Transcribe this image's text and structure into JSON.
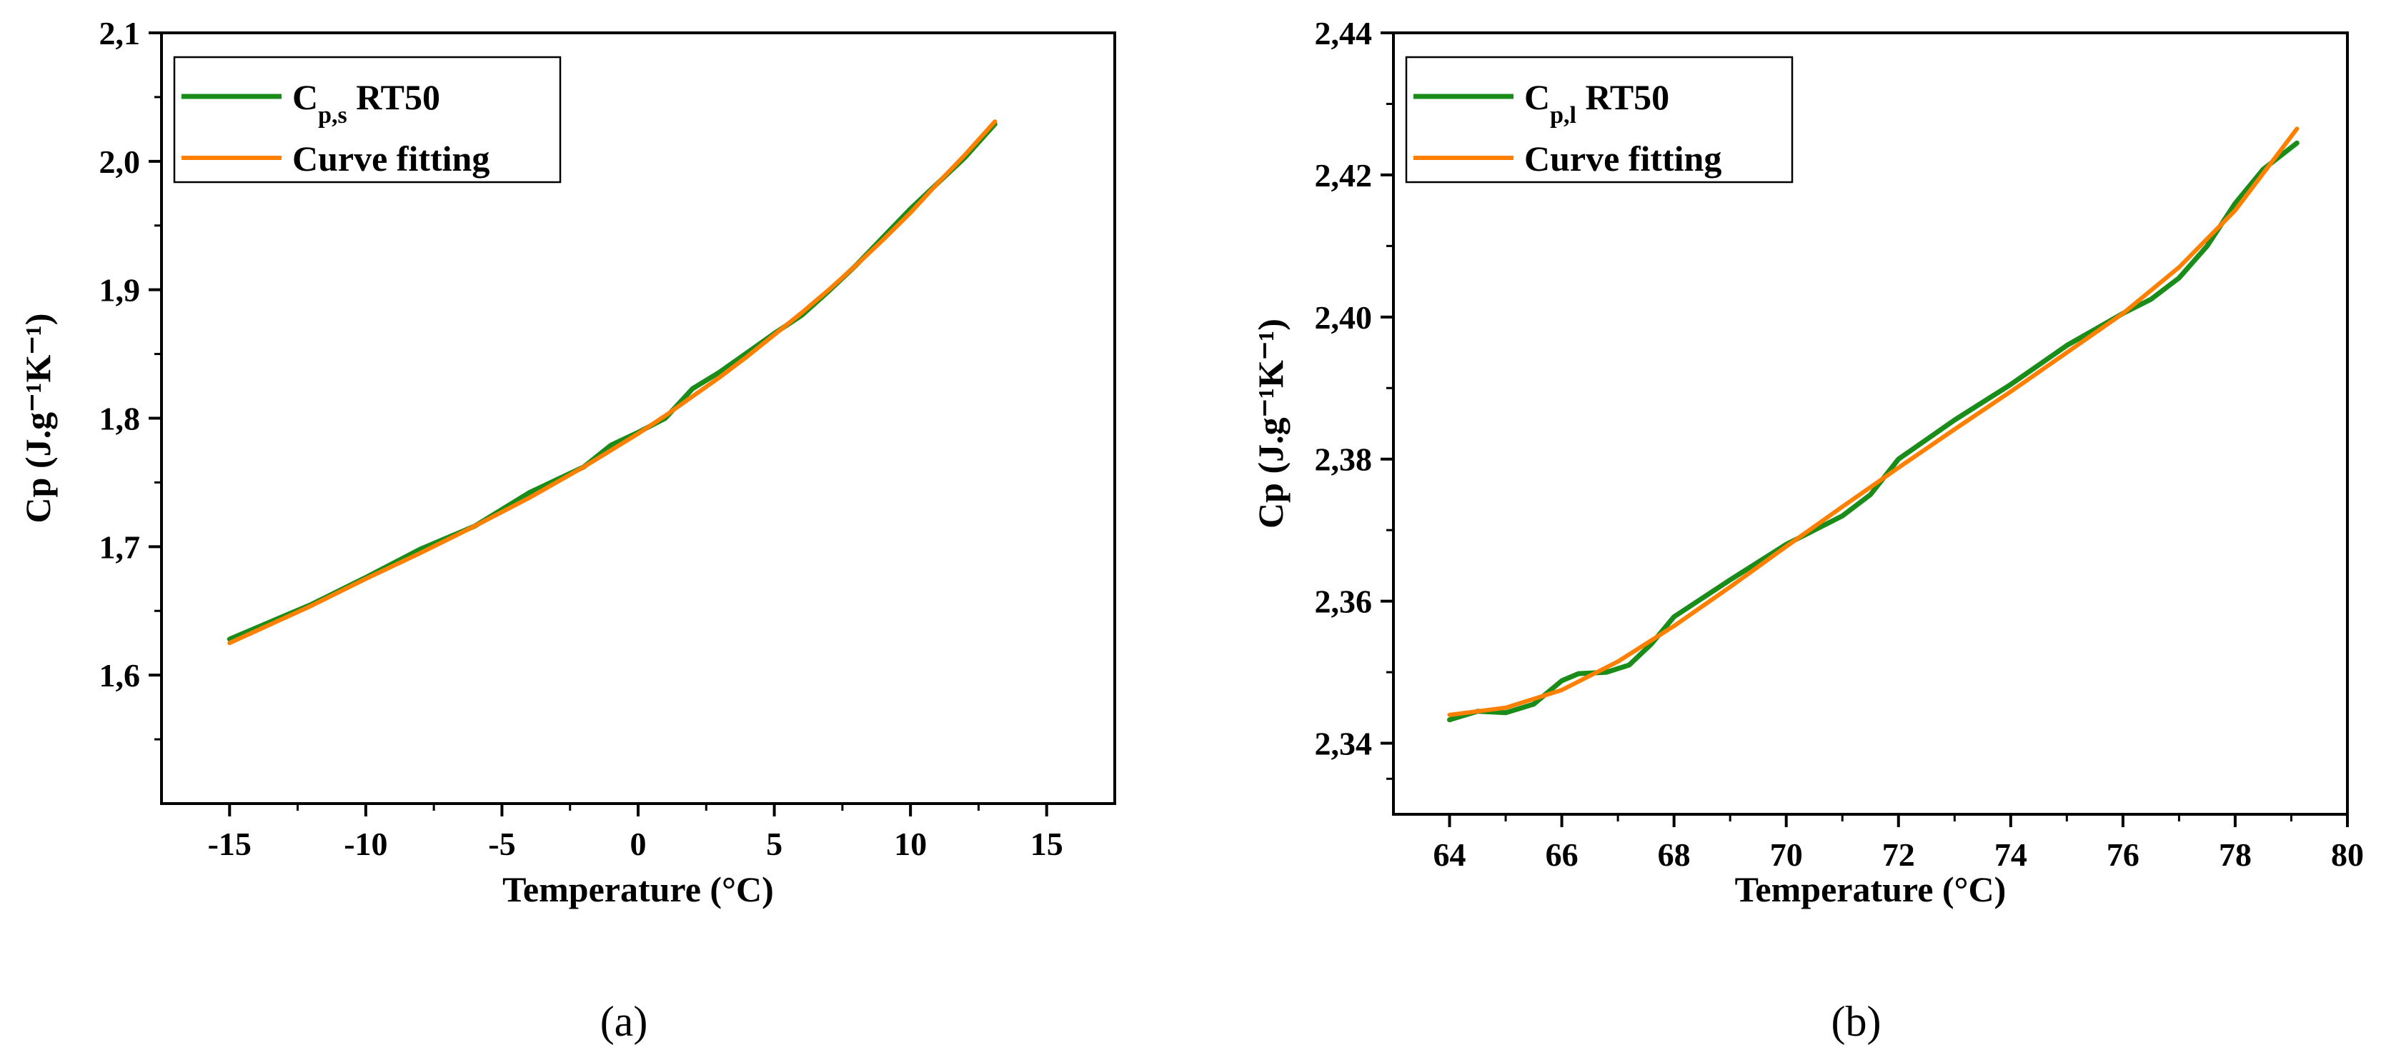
{
  "colors": {
    "data_line": "#1a8c1a",
    "fit_line": "#ff8000",
    "axis": "#000000"
  },
  "chart_data": [
    {
      "type": "line",
      "panel_label": "(a)",
      "xlabel": "Temperature (°C)",
      "ylabel": "Cp (J.g⁻¹K⁻¹)",
      "xlim": [
        -17.5,
        17.5
      ],
      "ylim": [
        1.5,
        2.1
      ],
      "x_ticks": [
        -15,
        -10,
        -5,
        0,
        5,
        10,
        15
      ],
      "x_tick_labels": [
        "-15",
        "-10",
        "-5",
        "0",
        "5",
        "10",
        "15"
      ],
      "y_ticks": [
        1.6,
        1.7,
        1.8,
        1.9,
        2.0,
        2.1
      ],
      "y_tick_labels": [
        "1,6",
        "1,7",
        "1,8",
        "1,9",
        "2,0",
        "2,1"
      ],
      "legend_position": "top-left",
      "series": [
        {
          "name": "Cp,s RT50",
          "legend_main": "C",
          "legend_sub": "p,s",
          "legend_rest": " RT50",
          "color": "#1a8c1a",
          "x": [
            -15,
            -12,
            -10,
            -8,
            -6,
            -4,
            -2,
            -1,
            0,
            1,
            2,
            3,
            4,
            5,
            6,
            7,
            8,
            9,
            10,
            11,
            12,
            13.1
          ],
          "y": [
            1.628,
            1.655,
            1.676,
            1.698,
            1.716,
            1.742,
            1.762,
            1.779,
            1.789,
            1.8,
            1.823,
            1.836,
            1.851,
            1.866,
            1.88,
            1.899,
            1.919,
            1.941,
            1.963,
            1.983,
            2.003,
            2.029
          ]
        },
        {
          "name": "Curve fitting",
          "legend_main": "Curve fitting",
          "legend_sub": "",
          "legend_rest": "",
          "color": "#ff8000",
          "x": [
            -15,
            -12,
            -10,
            -8,
            -6,
            -4,
            -2,
            -1,
            0,
            1,
            2,
            3,
            4,
            5,
            6,
            7,
            8,
            9,
            10,
            11,
            12,
            13.1
          ],
          "y": [
            1.625,
            1.654,
            1.675,
            1.695,
            1.716,
            1.738,
            1.762,
            1.775,
            1.788,
            1.802,
            1.817,
            1.832,
            1.848,
            1.865,
            1.882,
            1.9,
            1.919,
            1.939,
            1.96,
            1.983,
            2.005,
            2.031
          ]
        }
      ]
    },
    {
      "type": "line",
      "panel_label": "(b)",
      "xlabel": "Temperature (°C)",
      "ylabel": "Cp (J.g⁻¹K⁻¹)",
      "xlim": [
        63,
        80
      ],
      "ylim": [
        2.33,
        2.44
      ],
      "x_ticks": [
        64,
        66,
        68,
        70,
        72,
        74,
        76,
        78,
        80
      ],
      "x_tick_labels": [
        "64",
        "66",
        "68",
        "70",
        "72",
        "74",
        "76",
        "78",
        "80"
      ],
      "y_ticks": [
        2.34,
        2.36,
        2.38,
        2.4,
        2.42,
        2.44
      ],
      "y_tick_labels": [
        "2,34",
        "2,36",
        "2,38",
        "2,40",
        "2,42",
        "2,44"
      ],
      "legend_position": "top-left",
      "series": [
        {
          "name": "Cp,l RT50",
          "legend_main": "C",
          "legend_sub": "p,l",
          "legend_rest": " RT50",
          "color": "#1a8c1a",
          "x": [
            64,
            64.5,
            65,
            65.5,
            66,
            66.3,
            66.8,
            67.2,
            67.6,
            68,
            69,
            70,
            71,
            71.5,
            72,
            73,
            74,
            75,
            76,
            76.5,
            77,
            77.5,
            78,
            78.5,
            79.1
          ],
          "y": [
            2.3433,
            2.3445,
            2.3443,
            2.3455,
            2.3488,
            2.3498,
            2.35,
            2.351,
            2.354,
            2.3578,
            2.363,
            2.368,
            2.372,
            2.375,
            2.38,
            2.3855,
            2.3905,
            2.396,
            2.4005,
            2.4025,
            2.4055,
            2.41,
            2.416,
            2.4208,
            2.4245
          ]
        },
        {
          "name": "Curve fitting",
          "legend_main": "Curve fitting",
          "legend_sub": "",
          "legend_rest": "",
          "color": "#ff8000",
          "x": [
            64,
            65,
            66,
            67,
            68,
            69,
            70,
            71,
            72,
            73,
            74,
            75,
            76,
            77,
            78,
            79.1
          ],
          "y": [
            2.344,
            2.345,
            2.3475,
            2.3515,
            2.3565,
            2.362,
            2.3677,
            2.3733,
            2.3788,
            2.3842,
            2.3895,
            2.395,
            2.4005,
            2.407,
            2.415,
            2.4265
          ]
        }
      ]
    }
  ]
}
